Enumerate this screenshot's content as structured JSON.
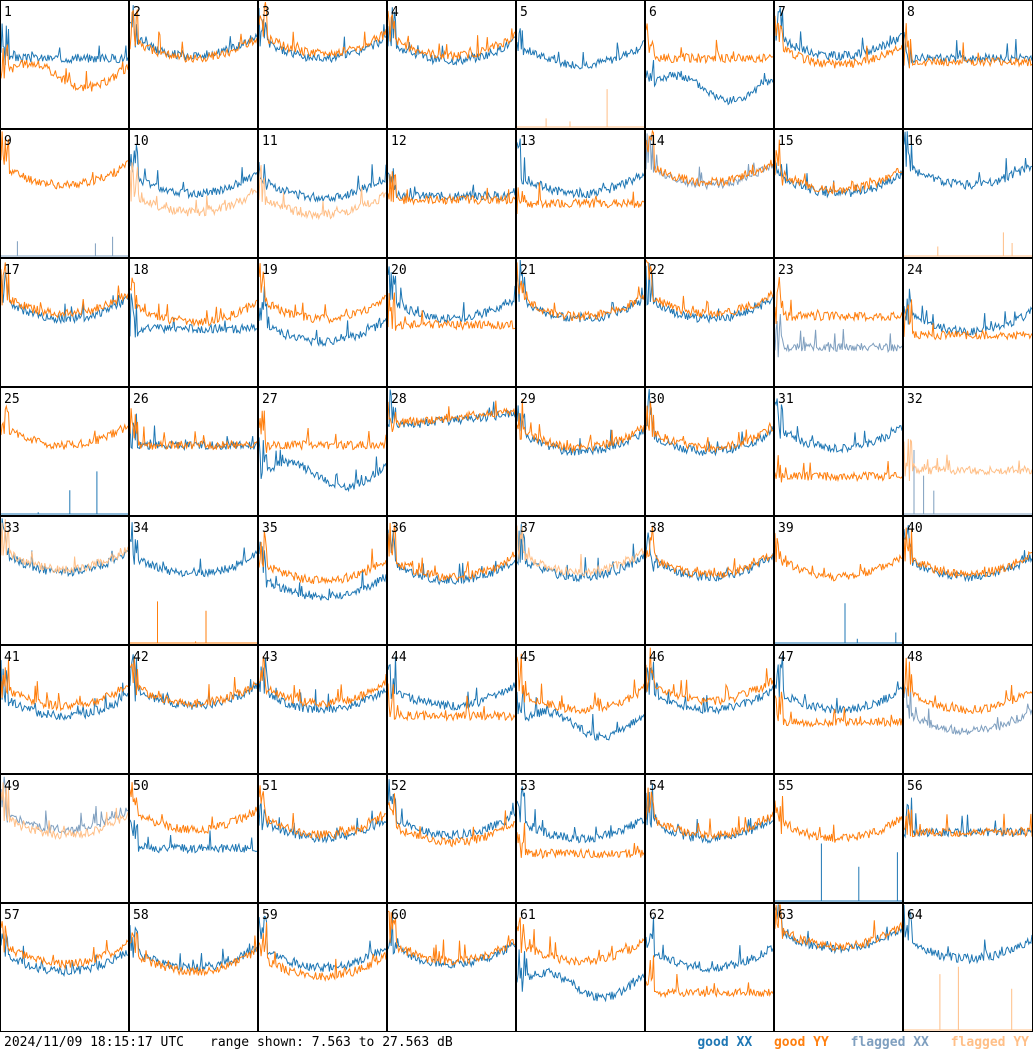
{
  "footer": {
    "timestamp": "2024/11/09 18:15:17 UTC",
    "range_label": "range shown:",
    "range_min": "7.563",
    "range_sep": "to",
    "range_max": "27.563",
    "range_unit": "dB"
  },
  "legend": {
    "good_xx": "good XX",
    "good_yy": "good YY",
    "flagged_xx": "flagged XX",
    "flagged_yy": "flagged YY"
  },
  "colors": {
    "good_xx": "#1f77b4",
    "good_yy": "#ff7f0e",
    "flagged_xx": "#7f9fbf",
    "flagged_yy": "#ffbf87"
  },
  "chart_data": {
    "type": "line",
    "ylim": [
      7.563,
      27.563
    ],
    "grid": false,
    "legend_position": "bottom-right",
    "panels": [
      {
        "label": "1",
        "xx": "good",
        "yy": "good",
        "xx_level": 0.55,
        "yy_level": 0.45,
        "xx_shape": "flat",
        "yy_shape": "ripple"
      },
      {
        "label": "2",
        "xx": "good",
        "yy": "good",
        "xx_level": 0.62,
        "yy_level": 0.6,
        "xx_shape": "bowl",
        "yy_shape": "bowl"
      },
      {
        "label": "3",
        "xx": "good",
        "yy": "good",
        "xx_level": 0.6,
        "yy_level": 0.64,
        "xx_shape": "bowl",
        "yy_shape": "bowl"
      },
      {
        "label": "4",
        "xx": "good",
        "yy": "good",
        "xx_level": 0.58,
        "yy_level": 0.62,
        "xx_shape": "bowl",
        "yy_shape": "bowl"
      },
      {
        "label": "5",
        "xx": "good",
        "yy": "flagged",
        "xx_level": 0.55,
        "yy_level": 0.0,
        "xx_shape": "bowl",
        "yy_shape": "flat"
      },
      {
        "label": "6",
        "xx": "good",
        "yy": "good",
        "xx_level": 0.35,
        "yy_level": 0.55,
        "xx_shape": "ripple",
        "yy_shape": "flat"
      },
      {
        "label": "7",
        "xx": "good",
        "yy": "good",
        "xx_level": 0.62,
        "yy_level": 0.55,
        "xx_shape": "bowl",
        "yy_shape": "bowl"
      },
      {
        "label": "8",
        "xx": "good",
        "yy": "good",
        "xx_level": 0.55,
        "yy_level": 0.52,
        "xx_shape": "flat",
        "yy_shape": "flat"
      },
      {
        "label": "9",
        "xx": "flagged",
        "yy": "good",
        "xx_level": 0.0,
        "yy_level": 0.62,
        "xx_shape": "flat",
        "yy_shape": "bowl"
      },
      {
        "label": "10",
        "xx": "good",
        "yy": "flagged",
        "xx_level": 0.55,
        "yy_level": 0.4,
        "xx_shape": "bowl",
        "yy_shape": "bowl"
      },
      {
        "label": "11",
        "xx": "good",
        "yy": "flagged",
        "xx_level": 0.52,
        "yy_level": 0.38,
        "xx_shape": "bowl",
        "yy_shape": "bowl"
      },
      {
        "label": "12",
        "xx": "good",
        "yy": "good",
        "xx_level": 0.48,
        "yy_level": 0.45,
        "xx_shape": "flat",
        "yy_shape": "flat"
      },
      {
        "label": "13",
        "xx": "good",
        "yy": "good",
        "xx_level": 0.55,
        "yy_level": 0.42,
        "xx_shape": "bowl",
        "yy_shape": "flat"
      },
      {
        "label": "14",
        "xx": "flagged",
        "yy": "good",
        "xx_level": 0.62,
        "yy_level": 0.64,
        "xx_shape": "bowl",
        "yy_shape": "bowl"
      },
      {
        "label": "15",
        "xx": "good",
        "yy": "good",
        "xx_level": 0.55,
        "yy_level": 0.58,
        "xx_shape": "bowl",
        "yy_shape": "bowl"
      },
      {
        "label": "16",
        "xx": "good",
        "yy": "flagged",
        "xx_level": 0.62,
        "yy_level": 0.0,
        "xx_shape": "bowl",
        "yy_shape": "flat"
      },
      {
        "label": "17",
        "xx": "good",
        "yy": "good",
        "xx_level": 0.58,
        "yy_level": 0.62,
        "xx_shape": "bowl",
        "yy_shape": "bowl"
      },
      {
        "label": "18",
        "xx": "good",
        "yy": "good",
        "xx_level": 0.45,
        "yy_level": 0.55,
        "xx_shape": "flat",
        "yy_shape": "bowl"
      },
      {
        "label": "19",
        "xx": "good",
        "yy": "good",
        "xx_level": 0.4,
        "yy_level": 0.58,
        "xx_shape": "bowl",
        "yy_shape": "bowl"
      },
      {
        "label": "20",
        "xx": "good",
        "yy": "good",
        "xx_level": 0.58,
        "yy_level": 0.48,
        "xx_shape": "bowl",
        "yy_shape": "flat"
      },
      {
        "label": "21",
        "xx": "good",
        "yy": "good",
        "xx_level": 0.58,
        "yy_level": 0.6,
        "xx_shape": "bowl",
        "yy_shape": "bowl"
      },
      {
        "label": "22",
        "xx": "good",
        "yy": "good",
        "xx_level": 0.58,
        "yy_level": 0.62,
        "xx_shape": "bowl",
        "yy_shape": "bowl"
      },
      {
        "label": "23",
        "xx": "flagged",
        "yy": "good",
        "xx_level": 0.3,
        "yy_level": 0.55,
        "xx_shape": "flat",
        "yy_shape": "flat"
      },
      {
        "label": "24",
        "xx": "good",
        "yy": "good",
        "xx_level": 0.48,
        "yy_level": 0.4,
        "xx_shape": "bowl",
        "yy_shape": "flat"
      },
      {
        "label": "25",
        "xx": "good",
        "yy": "good",
        "xx_level": 0.0,
        "yy_level": 0.6,
        "xx_shape": "flat",
        "yy_shape": "bowl"
      },
      {
        "label": "26",
        "xx": "good",
        "yy": "good",
        "xx_level": 0.55,
        "yy_level": 0.55,
        "xx_shape": "flat",
        "yy_shape": "flat"
      },
      {
        "label": "27",
        "xx": "good",
        "yy": "good",
        "xx_level": 0.35,
        "yy_level": 0.55,
        "xx_shape": "ripple",
        "yy_shape": "flat"
      },
      {
        "label": "28",
        "xx": "good",
        "yy": "good",
        "xx_level": 0.75,
        "yy_level": 0.77,
        "xx_shape": "rise",
        "yy_shape": "rise"
      },
      {
        "label": "29",
        "xx": "good",
        "yy": "good",
        "xx_level": 0.55,
        "yy_level": 0.58,
        "xx_shape": "bowl",
        "yy_shape": "bowl"
      },
      {
        "label": "30",
        "xx": "good",
        "yy": "good",
        "xx_level": 0.55,
        "yy_level": 0.58,
        "xx_shape": "bowl",
        "yy_shape": "bowl"
      },
      {
        "label": "31",
        "xx": "good",
        "yy": "good",
        "xx_level": 0.58,
        "yy_level": 0.3,
        "xx_shape": "bowl",
        "yy_shape": "flat"
      },
      {
        "label": "32",
        "xx": "flagged",
        "yy": "flagged",
        "xx_level": 0.0,
        "yy_level": 0.35,
        "xx_shape": "flat",
        "yy_shape": "flat"
      },
      {
        "label": "33",
        "xx": "good",
        "yy": "flagged",
        "xx_level": 0.62,
        "yy_level": 0.64,
        "xx_shape": "bowl",
        "yy_shape": "bowl"
      },
      {
        "label": "34",
        "xx": "good",
        "yy": "good",
        "xx_level": 0.6,
        "yy_level": 0.0,
        "xx_shape": "bowl",
        "yy_shape": "flat"
      },
      {
        "label": "35",
        "xx": "good",
        "yy": "good",
        "xx_level": 0.42,
        "yy_level": 0.55,
        "xx_shape": "bowl",
        "yy_shape": "bowl"
      },
      {
        "label": "36",
        "xx": "good",
        "yy": "good",
        "xx_level": 0.55,
        "yy_level": 0.58,
        "xx_shape": "bowl",
        "yy_shape": "bowl"
      },
      {
        "label": "37",
        "xx": "good",
        "yy": "flagged",
        "xx_level": 0.58,
        "yy_level": 0.62,
        "xx_shape": "bowl",
        "yy_shape": "bowl"
      },
      {
        "label": "38",
        "xx": "good",
        "yy": "good",
        "xx_level": 0.58,
        "yy_level": 0.6,
        "xx_shape": "bowl",
        "yy_shape": "bowl"
      },
      {
        "label": "39",
        "xx": "good",
        "yy": "good",
        "xx_level": 0.0,
        "yy_level": 0.58,
        "xx_shape": "flat",
        "yy_shape": "bowl"
      },
      {
        "label": "40",
        "xx": "good",
        "yy": "good",
        "xx_level": 0.58,
        "yy_level": 0.6,
        "xx_shape": "bowl",
        "yy_shape": "bowl"
      },
      {
        "label": "41",
        "xx": "good",
        "yy": "good",
        "xx_level": 0.5,
        "yy_level": 0.58,
        "xx_shape": "bowl",
        "yy_shape": "bowl"
      },
      {
        "label": "42",
        "xx": "good",
        "yy": "good",
        "xx_level": 0.58,
        "yy_level": 0.6,
        "xx_shape": "bowl",
        "yy_shape": "bowl"
      },
      {
        "label": "43",
        "xx": "good",
        "yy": "good",
        "xx_level": 0.55,
        "yy_level": 0.6,
        "xx_shape": "bowl",
        "yy_shape": "bowl"
      },
      {
        "label": "44",
        "xx": "good",
        "yy": "good",
        "xx_level": 0.58,
        "yy_level": 0.45,
        "xx_shape": "bowl",
        "yy_shape": "flat"
      },
      {
        "label": "45",
        "xx": "good",
        "yy": "good",
        "xx_level": 0.42,
        "yy_level": 0.55,
        "xx_shape": "ripple",
        "yy_shape": "bowl"
      },
      {
        "label": "46",
        "xx": "good",
        "yy": "good",
        "xx_level": 0.55,
        "yy_level": 0.62,
        "xx_shape": "bowl",
        "yy_shape": "bowl"
      },
      {
        "label": "47",
        "xx": "good",
        "yy": "good",
        "xx_level": 0.55,
        "yy_level": 0.4,
        "xx_shape": "bowl",
        "yy_shape": "flat"
      },
      {
        "label": "48",
        "xx": "flagged",
        "yy": "good",
        "xx_level": 0.38,
        "yy_level": 0.55,
        "xx_shape": "bowl",
        "yy_shape": "bowl"
      },
      {
        "label": "49",
        "xx": "flagged",
        "yy": "flagged",
        "xx_level": 0.62,
        "yy_level": 0.58,
        "xx_shape": "bowl",
        "yy_shape": "bowl"
      },
      {
        "label": "50",
        "xx": "good",
        "yy": "good",
        "xx_level": 0.42,
        "yy_level": 0.62,
        "xx_shape": "flat",
        "yy_shape": "bowl"
      },
      {
        "label": "51",
        "xx": "good",
        "yy": "good",
        "xx_level": 0.55,
        "yy_level": 0.58,
        "xx_shape": "bowl",
        "yy_shape": "bowl"
      },
      {
        "label": "52",
        "xx": "good",
        "yy": "good",
        "xx_level": 0.58,
        "yy_level": 0.52,
        "xx_shape": "bowl",
        "yy_shape": "bowl"
      },
      {
        "label": "53",
        "xx": "good",
        "yy": "good",
        "xx_level": 0.55,
        "yy_level": 0.38,
        "xx_shape": "bowl",
        "yy_shape": "flat"
      },
      {
        "label": "54",
        "xx": "good",
        "yy": "good",
        "xx_level": 0.55,
        "yy_level": 0.58,
        "xx_shape": "bowl",
        "yy_shape": "bowl"
      },
      {
        "label": "55",
        "xx": "good",
        "yy": "good",
        "xx_level": 0.0,
        "yy_level": 0.55,
        "xx_shape": "flat",
        "yy_shape": "bowl"
      },
      {
        "label": "56",
        "xx": "good",
        "yy": "good",
        "xx_level": 0.55,
        "yy_level": 0.55,
        "xx_shape": "flat",
        "yy_shape": "flat"
      },
      {
        "label": "57",
        "xx": "good",
        "yy": "good",
        "xx_level": 0.52,
        "yy_level": 0.58,
        "xx_shape": "bowl",
        "yy_shape": "bowl"
      },
      {
        "label": "58",
        "xx": "good",
        "yy": "good",
        "xx_level": 0.55,
        "yy_level": 0.52,
        "xx_shape": "bowl",
        "yy_shape": "bowl"
      },
      {
        "label": "59",
        "xx": "good",
        "yy": "good",
        "xx_level": 0.55,
        "yy_level": 0.48,
        "xx_shape": "bowl",
        "yy_shape": "bowl"
      },
      {
        "label": "60",
        "xx": "good",
        "yy": "good",
        "xx_level": 0.58,
        "yy_level": 0.6,
        "xx_shape": "bowl",
        "yy_shape": "bowl"
      },
      {
        "label": "61",
        "xx": "good",
        "yy": "good",
        "xx_level": 0.4,
        "yy_level": 0.6,
        "xx_shape": "ripple",
        "yy_shape": "bowl"
      },
      {
        "label": "62",
        "xx": "good",
        "yy": "good",
        "xx_level": 0.55,
        "yy_level": 0.3,
        "xx_shape": "bowl",
        "yy_shape": "flat"
      },
      {
        "label": "63",
        "xx": "good",
        "yy": "good",
        "xx_level": 0.7,
        "yy_level": 0.72,
        "xx_shape": "bowl",
        "yy_shape": "bowl"
      },
      {
        "label": "64",
        "xx": "good",
        "yy": "flagged",
        "xx_level": 0.62,
        "yy_level": 0.0,
        "xx_shape": "bowl",
        "yy_shape": "flat"
      }
    ]
  }
}
